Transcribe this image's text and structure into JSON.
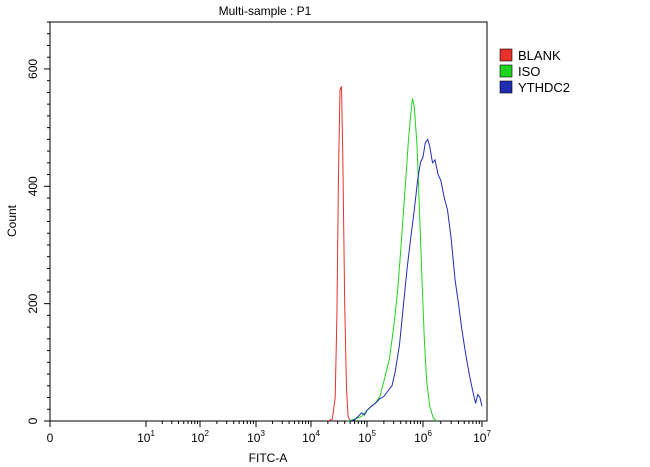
{
  "chart_data": {
    "type": "line",
    "title": "Multi-sample : P1",
    "xlabel": "FITC-A",
    "ylabel": "Count",
    "x_scale": "log",
    "xlim": [
      0,
      10000000
    ],
    "ylim": [
      0,
      680
    ],
    "grid": false,
    "legend_position": "top-right",
    "y_ticks": [
      0,
      200,
      400,
      600
    ],
    "x_ticks": [
      {
        "value": 0,
        "base": "0",
        "exp": ""
      },
      {
        "value": 10,
        "base": "10",
        "exp": "1"
      },
      {
        "value": 100,
        "base": "10",
        "exp": "2"
      },
      {
        "value": 1000,
        "base": "10",
        "exp": "3"
      },
      {
        "value": 10000,
        "base": "10",
        "exp": "4"
      },
      {
        "value": 100000,
        "base": "10",
        "exp": "5"
      },
      {
        "value": 1000000,
        "base": "10",
        "exp": "6"
      },
      {
        "value": 10000000,
        "base": "10",
        "exp": "7"
      }
    ],
    "series": [
      {
        "name": "BLANK",
        "color": "#e8312b",
        "points": [
          [
            20000,
            0
          ],
          [
            24000,
            3
          ],
          [
            27000,
            40
          ],
          [
            29000,
            180
          ],
          [
            31000,
            420
          ],
          [
            33000,
            565
          ],
          [
            35000,
            570
          ],
          [
            37000,
            450
          ],
          [
            40000,
            200
          ],
          [
            43000,
            55
          ],
          [
            46000,
            8
          ],
          [
            50000,
            0
          ]
        ]
      },
      {
        "name": "ISO",
        "color": "#21d321",
        "points": [
          [
            45000,
            0
          ],
          [
            60000,
            3
          ],
          [
            80000,
            8
          ],
          [
            100000,
            18
          ],
          [
            120000,
            25
          ],
          [
            140000,
            30
          ],
          [
            170000,
            42
          ],
          [
            200000,
            68
          ],
          [
            250000,
            105
          ],
          [
            300000,
            160
          ],
          [
            350000,
            220
          ],
          [
            400000,
            290
          ],
          [
            450000,
            360
          ],
          [
            500000,
            420
          ],
          [
            550000,
            480
          ],
          [
            600000,
            520
          ],
          [
            650000,
            550
          ],
          [
            700000,
            535
          ],
          [
            780000,
            470
          ],
          [
            850000,
            380
          ],
          [
            950000,
            250
          ],
          [
            1050000,
            140
          ],
          [
            1150000,
            70
          ],
          [
            1300000,
            25
          ],
          [
            1500000,
            5
          ],
          [
            1700000,
            0
          ]
        ]
      },
      {
        "name": "YTHDC2",
        "color": "#1f2db3",
        "points": [
          [
            50000,
            0
          ],
          [
            60000,
            2
          ],
          [
            70000,
            8
          ],
          [
            80000,
            14
          ],
          [
            90000,
            10
          ],
          [
            100000,
            18
          ],
          [
            120000,
            25
          ],
          [
            140000,
            30
          ],
          [
            170000,
            38
          ],
          [
            200000,
            42
          ],
          [
            240000,
            52
          ],
          [
            280000,
            60
          ],
          [
            320000,
            85
          ],
          [
            380000,
            130
          ],
          [
            450000,
            200
          ],
          [
            520000,
            260
          ],
          [
            600000,
            310
          ],
          [
            700000,
            360
          ],
          [
            800000,
            410
          ],
          [
            900000,
            440
          ],
          [
            1000000,
            450
          ],
          [
            1100000,
            475
          ],
          [
            1200000,
            480
          ],
          [
            1300000,
            468
          ],
          [
            1450000,
            440
          ],
          [
            1600000,
            445
          ],
          [
            1800000,
            420
          ],
          [
            2000000,
            410
          ],
          [
            2300000,
            380
          ],
          [
            2600000,
            360
          ],
          [
            3000000,
            310
          ],
          [
            3500000,
            240
          ],
          [
            4000000,
            200
          ],
          [
            4500000,
            160
          ],
          [
            5000000,
            130
          ],
          [
            5600000,
            100
          ],
          [
            6200000,
            75
          ],
          [
            7000000,
            50
          ],
          [
            7800000,
            30
          ],
          [
            8500000,
            45
          ],
          [
            9200000,
            40
          ],
          [
            10000000,
            25
          ]
        ]
      }
    ]
  }
}
